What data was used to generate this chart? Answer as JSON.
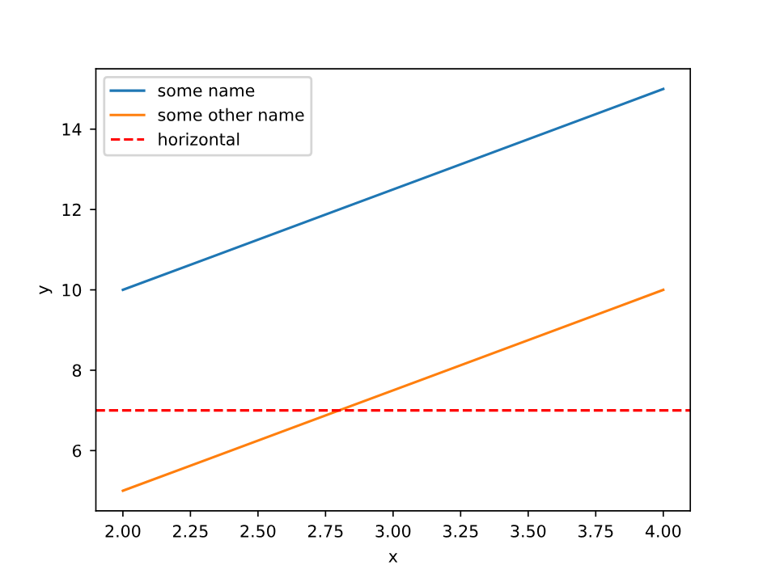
{
  "chart_data": {
    "type": "line",
    "xlabel": "x",
    "ylabel": "y",
    "x": [
      2,
      4
    ],
    "series": [
      {
        "name": "some name",
        "color": "#1f77b4",
        "values": [
          10,
          15
        ]
      },
      {
        "name": "some other name",
        "color": "#ff7f0e",
        "values": [
          5,
          10
        ]
      }
    ],
    "ref_lines": [
      {
        "axis": "y",
        "value": 7,
        "label": "horizontal",
        "color": "#ff0000",
        "line_style": "dashed"
      }
    ],
    "xlim": [
      1.9,
      4.1
    ],
    "xticks": [
      {
        "value": 2,
        "label": "2.00"
      },
      {
        "value": 2.25,
        "label": "2.25"
      },
      {
        "value": 2.5,
        "label": "2.50"
      },
      {
        "value": 2.75,
        "label": "2.75"
      },
      {
        "value": 3,
        "label": "3.00"
      },
      {
        "value": 3.25,
        "label": "3.25"
      },
      {
        "value": 3.5,
        "label": "3.50"
      },
      {
        "value": 3.75,
        "label": "3.75"
      },
      {
        "value": 4,
        "label": "4.00"
      }
    ],
    "ylim": [
      4.5,
      15.5
    ],
    "yticks": [
      6,
      8,
      10,
      12,
      14
    ],
    "legend": "top left",
    "grid": false,
    "marker": "none",
    "line_style": "solid"
  }
}
